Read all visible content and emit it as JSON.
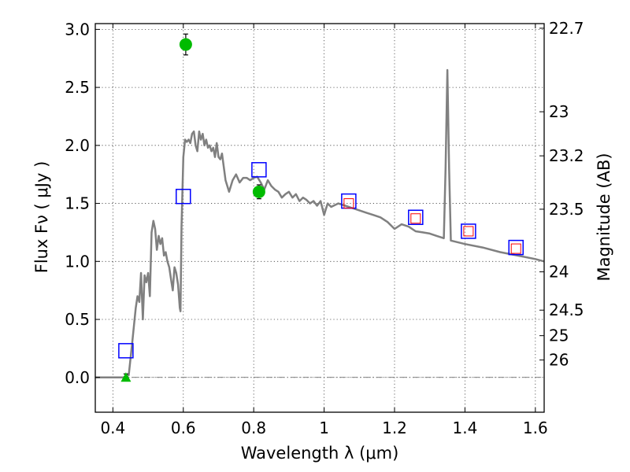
{
  "chart_data": {
    "type": "scatter",
    "xlabel": "Wavelength  λ (μm)",
    "ylabel": "Flux  Fν  ( μJy )",
    "ylabel_right": "Magnitude (AB)",
    "xlim": [
      0.35,
      1.625
    ],
    "ylim": [
      -0.3,
      3.05
    ],
    "xticks": [
      0.4,
      0.6,
      0.8,
      1.0,
      1.2,
      1.4,
      1.6
    ],
    "xtick_labels": [
      "0.4",
      "0.6",
      "0.8",
      "1",
      "1.2",
      "1.4",
      "1.6"
    ],
    "yticks": [
      0.0,
      0.5,
      1.0,
      1.5,
      2.0,
      2.5,
      3.0
    ],
    "ytick_labels": [
      "0.0",
      "0.5",
      "1.0",
      "1.5",
      "2.0",
      "2.5",
      "3.0"
    ],
    "mag_ticks": [
      {
        "label": "22.7",
        "flux": 3.01
      },
      {
        "label": "23",
        "flux": 2.29
      },
      {
        "label": "23.2",
        "flux": 1.91
      },
      {
        "label": "23.5",
        "flux": 1.45
      },
      {
        "label": "24",
        "flux": 0.91
      },
      {
        "label": "24.5",
        "flux": 0.58
      },
      {
        "label": "25",
        "flux": 0.36
      },
      {
        "label": "26",
        "flux": 0.15
      }
    ],
    "grid": true,
    "colors": {
      "model": "#808080",
      "photometry": "#00bb00",
      "model_boxes": "#0000ff",
      "inner_boxes": "#ff0000"
    },
    "series": [
      {
        "kind": "line",
        "x": [
          0.35,
          0.43,
          0.445,
          0.455,
          0.465,
          0.47,
          0.475,
          0.48,
          0.485,
          0.49,
          0.495,
          0.5,
          0.505,
          0.51,
          0.515,
          0.52,
          0.525,
          0.53,
          0.535,
          0.54,
          0.545,
          0.55,
          0.555,
          0.56,
          0.565,
          0.57,
          0.575,
          0.58,
          0.585,
          0.59,
          0.592,
          0.595,
          0.6,
          0.605,
          0.61,
          0.615,
          0.62,
          0.625,
          0.63,
          0.635,
          0.64,
          0.645,
          0.65,
          0.655,
          0.66,
          0.665,
          0.67,
          0.675,
          0.68,
          0.685,
          0.69,
          0.695,
          0.7,
          0.705,
          0.71,
          0.72,
          0.73,
          0.74,
          0.75,
          0.76,
          0.77,
          0.78,
          0.79,
          0.8,
          0.81,
          0.82,
          0.83,
          0.84,
          0.85,
          0.86,
          0.87,
          0.88,
          0.89,
          0.9,
          0.91,
          0.92,
          0.93,
          0.94,
          0.95,
          0.96,
          0.97,
          0.98,
          0.99,
          1.0,
          1.005,
          1.01,
          1.02,
          1.04,
          1.06,
          1.08,
          1.1,
          1.12,
          1.14,
          1.16,
          1.18,
          1.2,
          1.22,
          1.24,
          1.26,
          1.28,
          1.3,
          1.32,
          1.34,
          1.345,
          1.35,
          1.355,
          1.36,
          1.4,
          1.45,
          1.5,
          1.55,
          1.6,
          1.625
        ],
        "y": [
          0.0,
          0.0,
          0.02,
          0.3,
          0.6,
          0.7,
          0.65,
          0.9,
          0.5,
          0.88,
          0.82,
          0.9,
          0.7,
          1.25,
          1.35,
          1.28,
          1.1,
          1.22,
          1.15,
          1.2,
          1.05,
          1.08,
          1.0,
          0.95,
          0.85,
          0.75,
          0.95,
          0.9,
          0.8,
          0.6,
          0.57,
          1.3,
          1.9,
          2.05,
          2.03,
          2.05,
          2.02,
          2.1,
          2.12,
          2.0,
          1.95,
          2.12,
          2.05,
          2.1,
          2.0,
          2.05,
          1.98,
          2.0,
          1.95,
          1.98,
          1.9,
          2.02,
          1.9,
          1.88,
          1.93,
          1.7,
          1.6,
          1.7,
          1.75,
          1.68,
          1.72,
          1.72,
          1.7,
          1.72,
          1.73,
          1.68,
          1.62,
          1.7,
          1.65,
          1.62,
          1.6,
          1.55,
          1.58,
          1.6,
          1.55,
          1.58,
          1.52,
          1.55,
          1.53,
          1.5,
          1.52,
          1.48,
          1.52,
          1.4,
          1.45,
          1.5,
          1.47,
          1.5,
          1.48,
          1.46,
          1.44,
          1.42,
          1.4,
          1.38,
          1.34,
          1.28,
          1.32,
          1.3,
          1.26,
          1.25,
          1.24,
          1.22,
          1.2,
          1.8,
          2.65,
          1.8,
          1.18,
          1.15,
          1.12,
          1.08,
          1.05,
          1.02,
          1.0
        ]
      },
      {
        "kind": "points",
        "x": [
          0.607,
          0.815
        ],
        "y": [
          2.87,
          1.6
        ],
        "yerr": [
          0.09,
          0.06
        ]
      },
      {
        "kind": "upper_limit",
        "x": [
          0.437
        ],
        "y": [
          0.0
        ],
        "yerr": [
          0.03
        ]
      },
      {
        "kind": "boxes",
        "x": [
          0.437,
          0.6,
          0.815,
          1.07,
          1.26,
          1.41,
          1.545
        ],
        "y": [
          0.23,
          1.56,
          1.79,
          1.52,
          1.38,
          1.26,
          1.12
        ]
      },
      {
        "kind": "inner_boxes",
        "x": [
          1.07,
          1.26,
          1.41,
          1.545
        ],
        "y": [
          1.5,
          1.37,
          1.26,
          1.11
        ]
      }
    ]
  }
}
